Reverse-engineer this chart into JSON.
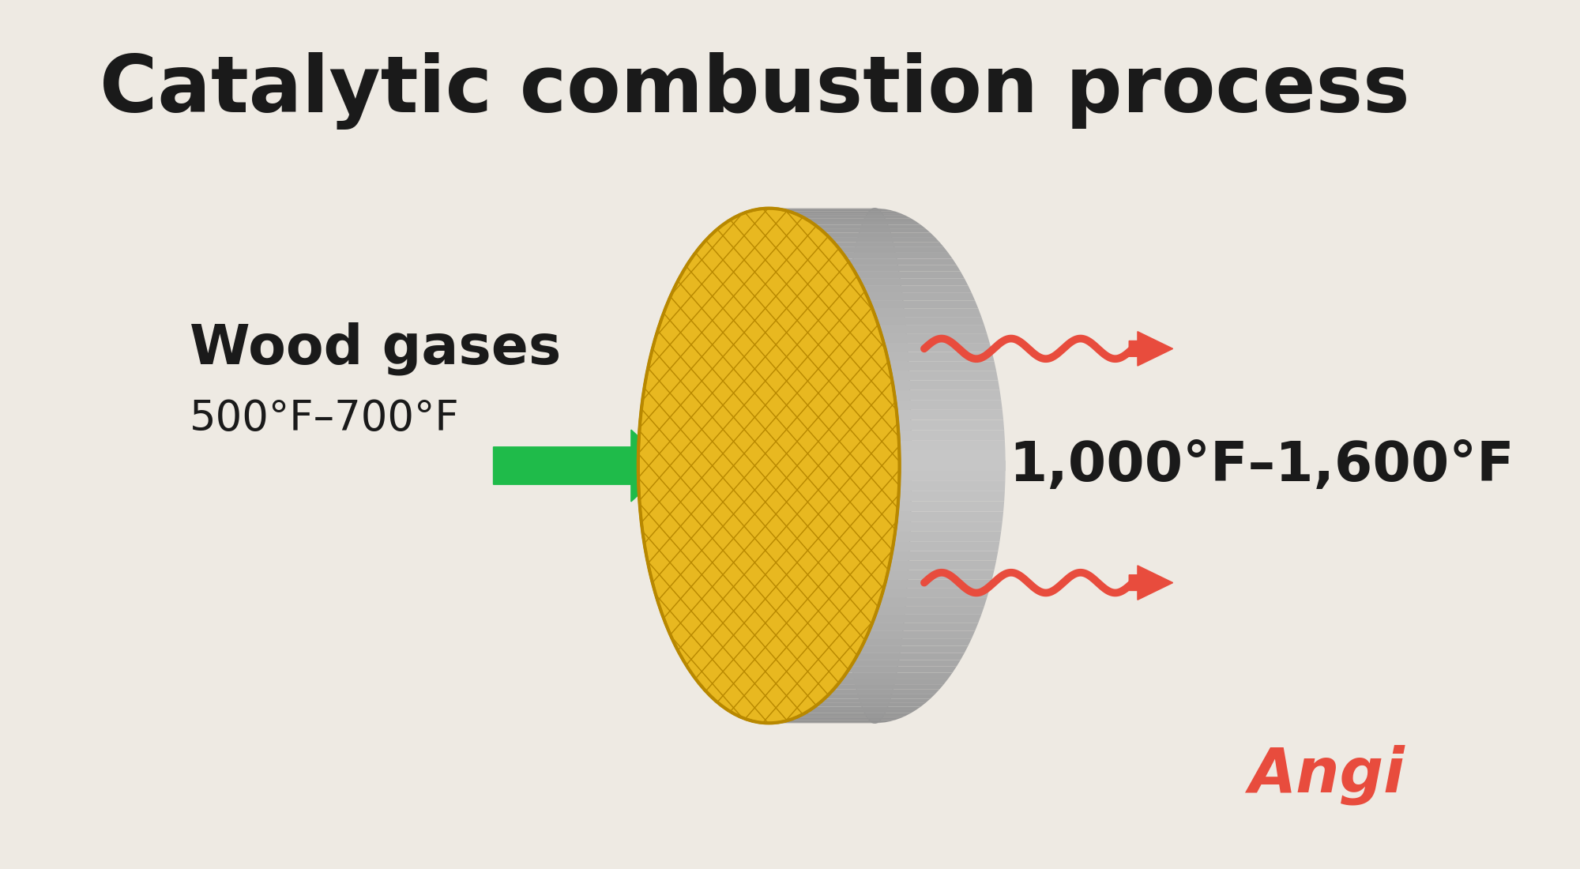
{
  "title": "Catalytic combustion process",
  "title_fontsize": 72,
  "title_color": "#1a1a1a",
  "title_fontweight": "bold",
  "bg_color": "#eeeae3",
  "wood_gases_label": "Wood gases",
  "wood_gases_temp_correct": "500°F–700°F",
  "wood_gases_label_fontsize": 50,
  "wood_gases_temp_fontsize": 38,
  "wood_gases_label_color": "#1a1a1a",
  "wood_gases_temp_color": "#1a1a1a",
  "output_temp": "1,000°F–1,600°F",
  "output_temp_fontsize": 50,
  "output_temp_color": "#1a1a1a",
  "green_arrow_color": "#1fbb4a",
  "red_arrow_color": "#e84c3d",
  "catalyst_face_color": "#e8b820",
  "catalyst_face_color_dark": "#b88800",
  "angi_color": "#e84c3d",
  "angi_fontsize": 56
}
